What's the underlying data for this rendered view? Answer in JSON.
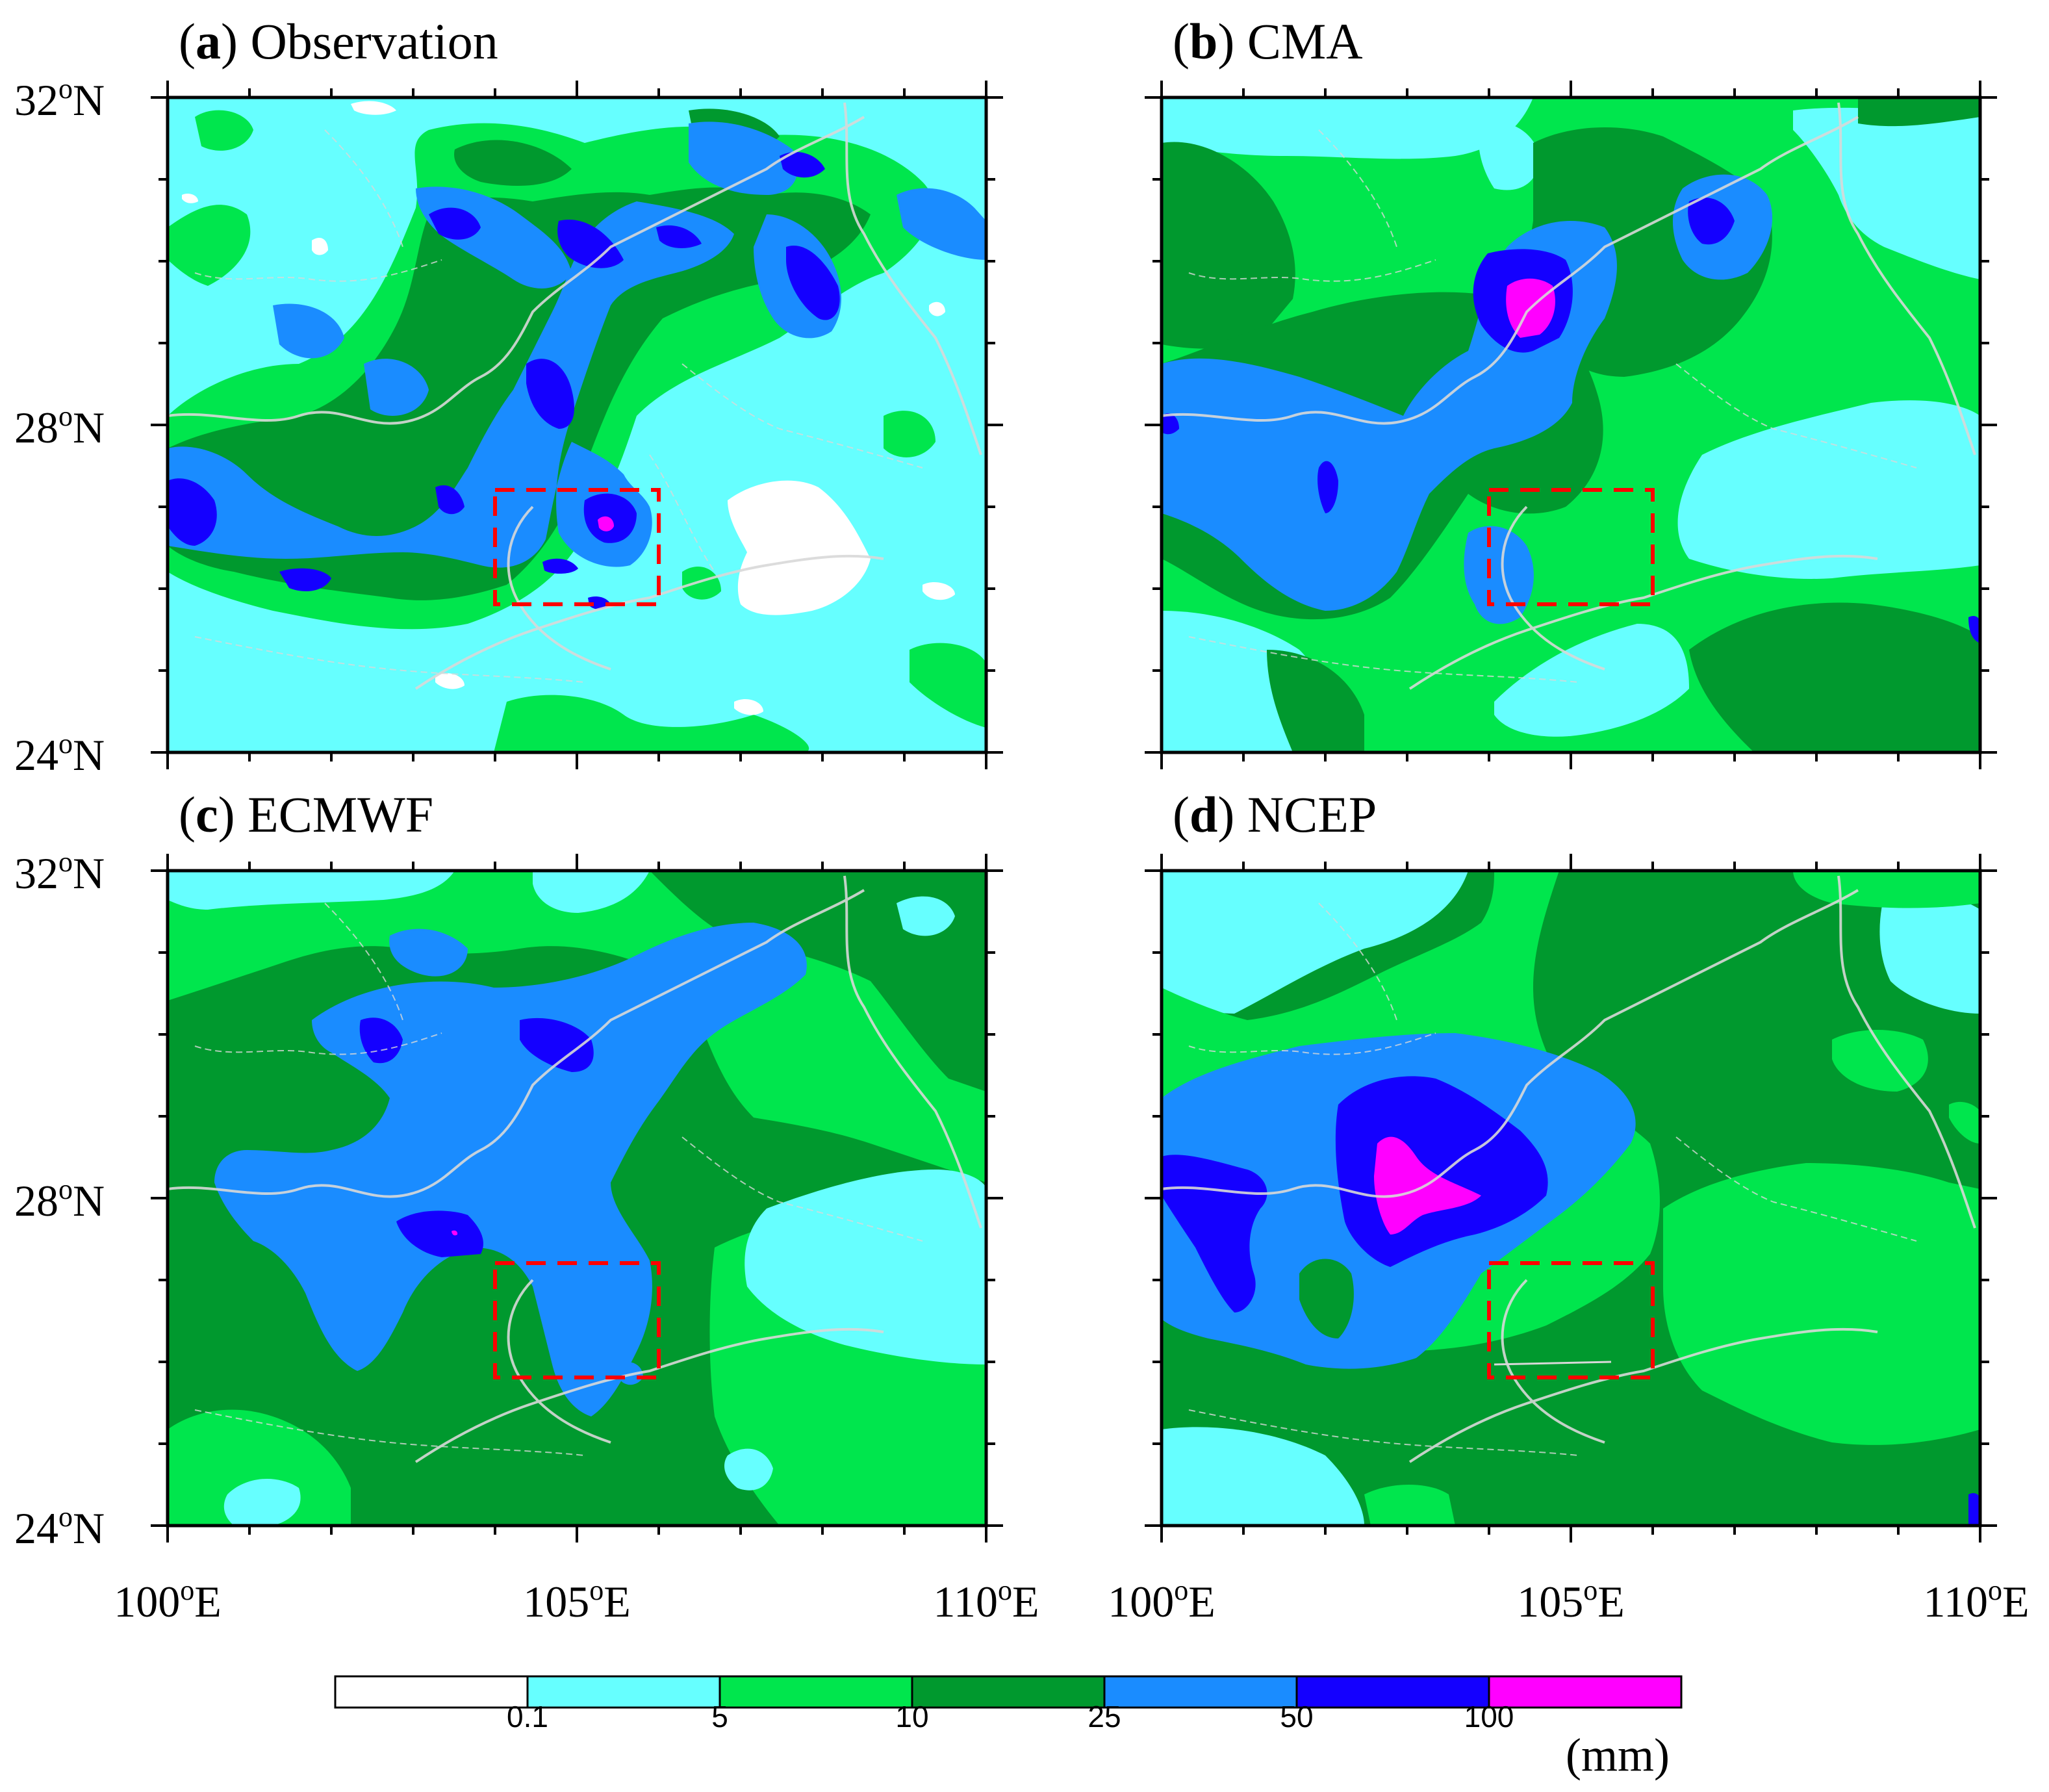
{
  "panels": [
    {
      "id": "a",
      "letter": "a",
      "title": "Observation"
    },
    {
      "id": "b",
      "letter": "b",
      "title": "CMA"
    },
    {
      "id": "c",
      "letter": "c",
      "title": "ECMWF"
    },
    {
      "id": "d",
      "letter": "d",
      "title": "NCEP"
    }
  ],
  "axes": {
    "lat_labels": [
      {
        "value": 32,
        "text": "32",
        "sup": "o",
        "suffix": "N"
      },
      {
        "value": 28,
        "text": "28",
        "sup": "o",
        "suffix": "N"
      },
      {
        "value": 24,
        "text": "24",
        "sup": "o",
        "suffix": "N"
      }
    ],
    "lon_labels": [
      {
        "value": 100,
        "text": "100",
        "sup": "o",
        "suffix": "E"
      },
      {
        "value": 105,
        "text": "105",
        "sup": "o",
        "suffix": "E"
      },
      {
        "value": 110,
        "text": "110",
        "sup": "o",
        "suffix": "E"
      }
    ],
    "lon_range": [
      100,
      110
    ],
    "lat_range": [
      24,
      32
    ]
  },
  "highlight_box": {
    "lon": [
      104,
      106
    ],
    "lat": [
      25.8,
      27.2
    ],
    "color": "#ff0000"
  },
  "colorbar": {
    "levels": [
      "0.1",
      "5",
      "10",
      "25",
      "50",
      "100"
    ],
    "colors": [
      "#ffffff",
      "#66ffff",
      "#00e64d",
      "#00992e",
      "#1a8cff",
      "#1400ff",
      "#ff00ff"
    ],
    "unit": "(mm)"
  }
}
